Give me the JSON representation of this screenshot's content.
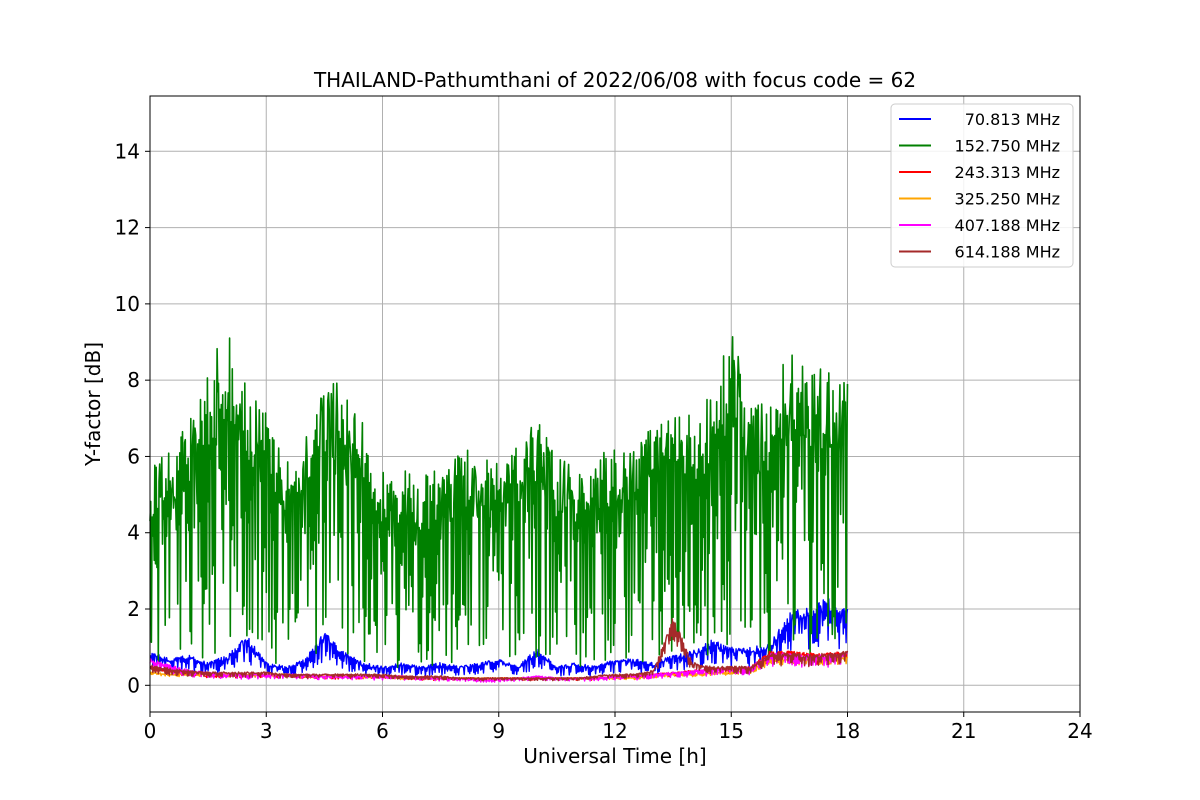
{
  "chart_data": {
    "type": "line",
    "title": "THAILAND-Pathumthani of 2022/06/08 with focus code = 62",
    "xlabel": "Universal Time [h]",
    "ylabel": "Y-factor [dB]",
    "xlim": [
      0,
      24
    ],
    "ylim": [
      -0.7,
      15.45
    ],
    "xticks": [
      0,
      3,
      6,
      9,
      12,
      15,
      18,
      21,
      24
    ],
    "yticks": [
      0,
      2,
      4,
      6,
      8,
      10,
      12,
      14
    ],
    "xtick_labels": [
      "0",
      "3",
      "6",
      "9",
      "12",
      "15",
      "18",
      "21",
      "24"
    ],
    "ytick_labels": [
      "0",
      "2",
      "4",
      "6",
      "8",
      "10",
      "12",
      "14"
    ],
    "grid": true,
    "legend_position": "top-right",
    "x": [
      0,
      0.5,
      1,
      1.5,
      2,
      2.5,
      3,
      3.5,
      4,
      4.5,
      5,
      5.5,
      6,
      6.5,
      7,
      7.5,
      8,
      8.5,
      9,
      9.5,
      10,
      10.5,
      11,
      11.5,
      12,
      12.5,
      13,
      13.5,
      14,
      14.5,
      15,
      15.5,
      16,
      16.5,
      17,
      17.5,
      18
    ],
    "series": [
      {
        "name": "70.813 MHz",
        "color": "#0000ff",
        "values": [
          0.9,
          0.7,
          0.8,
          0.6,
          0.8,
          1.3,
          0.6,
          0.5,
          0.7,
          1.4,
          0.9,
          0.6,
          0.5,
          0.6,
          0.5,
          0.6,
          0.5,
          0.6,
          0.7,
          0.5,
          1.0,
          0.5,
          0.6,
          0.5,
          0.7,
          0.7,
          0.6,
          0.8,
          0.9,
          1.2,
          1.0,
          1.0,
          1.1,
          1.9,
          2.1,
          2.3,
          2.0
        ]
      },
      {
        "name": "152.750 MHz",
        "color": "#008000",
        "values": [
          5.8,
          6.2,
          6.9,
          8.4,
          9.5,
          8.0,
          7.4,
          5.8,
          6.6,
          8.2,
          7.8,
          6.9,
          5.8,
          5.8,
          5.6,
          5.7,
          6.2,
          6.1,
          5.9,
          6.3,
          7.2,
          6.0,
          5.8,
          6.0,
          6.3,
          6.3,
          6.8,
          7.0,
          7.2,
          7.6,
          9.5,
          7.6,
          7.6,
          8.8,
          8.3,
          8.5,
          7.9
        ]
      },
      {
        "name": "243.313 MHz",
        "color": "#ff0000",
        "values": [
          0.5,
          0.4,
          0.35,
          0.3,
          0.3,
          0.3,
          0.3,
          0.3,
          0.25,
          0.25,
          0.25,
          0.25,
          0.25,
          0.25,
          0.2,
          0.2,
          0.2,
          0.2,
          0.2,
          0.2,
          0.2,
          0.2,
          0.2,
          0.2,
          0.25,
          0.25,
          0.3,
          0.35,
          0.4,
          0.45,
          0.45,
          0.5,
          0.9,
          0.9,
          0.85,
          0.85,
          0.9
        ]
      },
      {
        "name": "325.250 MHz",
        "color": "#ffa500",
        "values": [
          0.35,
          0.3,
          0.3,
          0.3,
          0.3,
          0.3,
          0.3,
          0.3,
          0.25,
          0.25,
          0.25,
          0.25,
          0.25,
          0.2,
          0.2,
          0.2,
          0.2,
          0.2,
          0.2,
          0.2,
          0.2,
          0.2,
          0.2,
          0.2,
          0.2,
          0.2,
          0.25,
          0.3,
          0.3,
          0.35,
          0.35,
          0.4,
          0.7,
          0.7,
          0.7,
          0.7,
          0.75
        ]
      },
      {
        "name": "407.188 MHz",
        "color": "#ff00ff",
        "values": [
          0.7,
          0.55,
          0.4,
          0.35,
          0.3,
          0.3,
          0.3,
          0.3,
          0.3,
          0.25,
          0.25,
          0.25,
          0.25,
          0.25,
          0.2,
          0.2,
          0.2,
          0.15,
          0.15,
          0.2,
          0.25,
          0.2,
          0.2,
          0.2,
          0.25,
          0.25,
          0.3,
          0.35,
          0.4,
          0.45,
          0.45,
          0.5,
          0.85,
          0.85,
          0.8,
          0.8,
          0.85
        ]
      },
      {
        "name": "614.188 MHz",
        "color": "#a52a2a",
        "values": [
          0.55,
          0.45,
          0.4,
          0.35,
          0.35,
          0.35,
          0.35,
          0.3,
          0.3,
          0.3,
          0.3,
          0.3,
          0.3,
          0.25,
          0.25,
          0.25,
          0.2,
          0.2,
          0.2,
          0.2,
          0.2,
          0.2,
          0.2,
          0.25,
          0.3,
          0.3,
          0.4,
          1.8,
          0.6,
          0.5,
          0.5,
          0.5,
          0.85,
          0.85,
          0.8,
          0.85,
          0.9
        ]
      }
    ]
  }
}
